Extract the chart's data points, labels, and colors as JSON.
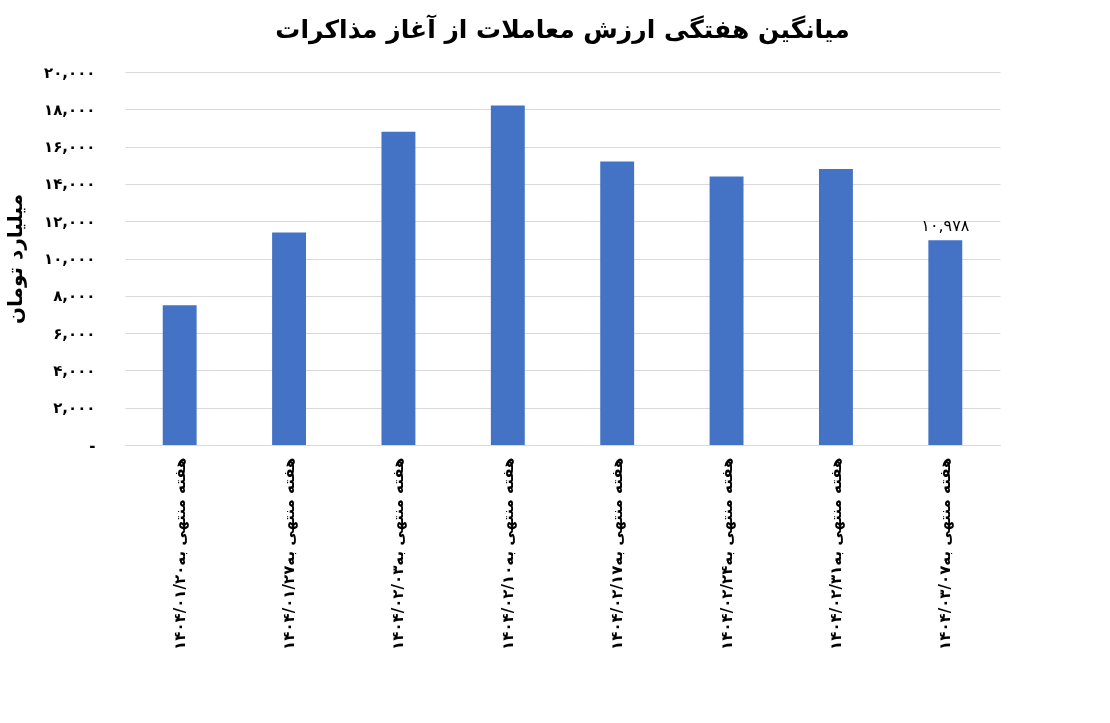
{
  "chart_data": {
    "type": "bar",
    "title": "میانگین هفتگی ارزش معاملات از آغاز مذاکرات",
    "ylabel": "میلیارد تومان",
    "categories": [
      "هفته منتهی به۱۴۰۴/۰۱/۲۰",
      "هفته منتهی به۱۴۰۴/۰۱/۲۷",
      "هفته منتهی به۱۴۰۴/۰۲/۰۳",
      "هفته منتهی به۱۴۰۴/۰۲/۱۰",
      "هفته منتهی به۱۴۰۴/۰۲/۱۷",
      "هفته منتهی به۱۴۰۴/۰۲/۲۴",
      "هفته منتهی به۱۴۰۴/۰۲/۳۱",
      "هفته منتهی به۱۴۰۴/۰۳/۰۷"
    ],
    "values": [
      7500,
      11400,
      16800,
      18200,
      15200,
      14400,
      14800,
      10978
    ],
    "value_labels": [
      null,
      null,
      null,
      null,
      null,
      null,
      null,
      "۱۰,۹۷۸"
    ],
    "color": "#4472c4",
    "ylim": [
      0,
      20000
    ],
    "yticks": [
      {
        "value": 0,
        "label": "-"
      },
      {
        "value": 2000,
        "label": "۲,۰۰۰"
      },
      {
        "value": 4000,
        "label": "۴,۰۰۰"
      },
      {
        "value": 6000,
        "label": "۶,۰۰۰"
      },
      {
        "value": 8000,
        "label": "۸,۰۰۰"
      },
      {
        "value": 10000,
        "label": "۱۰,۰۰۰"
      },
      {
        "value": 12000,
        "label": "۱۲,۰۰۰"
      },
      {
        "value": 14000,
        "label": "۱۴,۰۰۰"
      },
      {
        "value": 16000,
        "label": "۱۶,۰۰۰"
      },
      {
        "value": 18000,
        "label": "۱۸,۰۰۰"
      },
      {
        "value": 20000,
        "label": "۲۰,۰۰۰"
      }
    ],
    "grid": true
  }
}
